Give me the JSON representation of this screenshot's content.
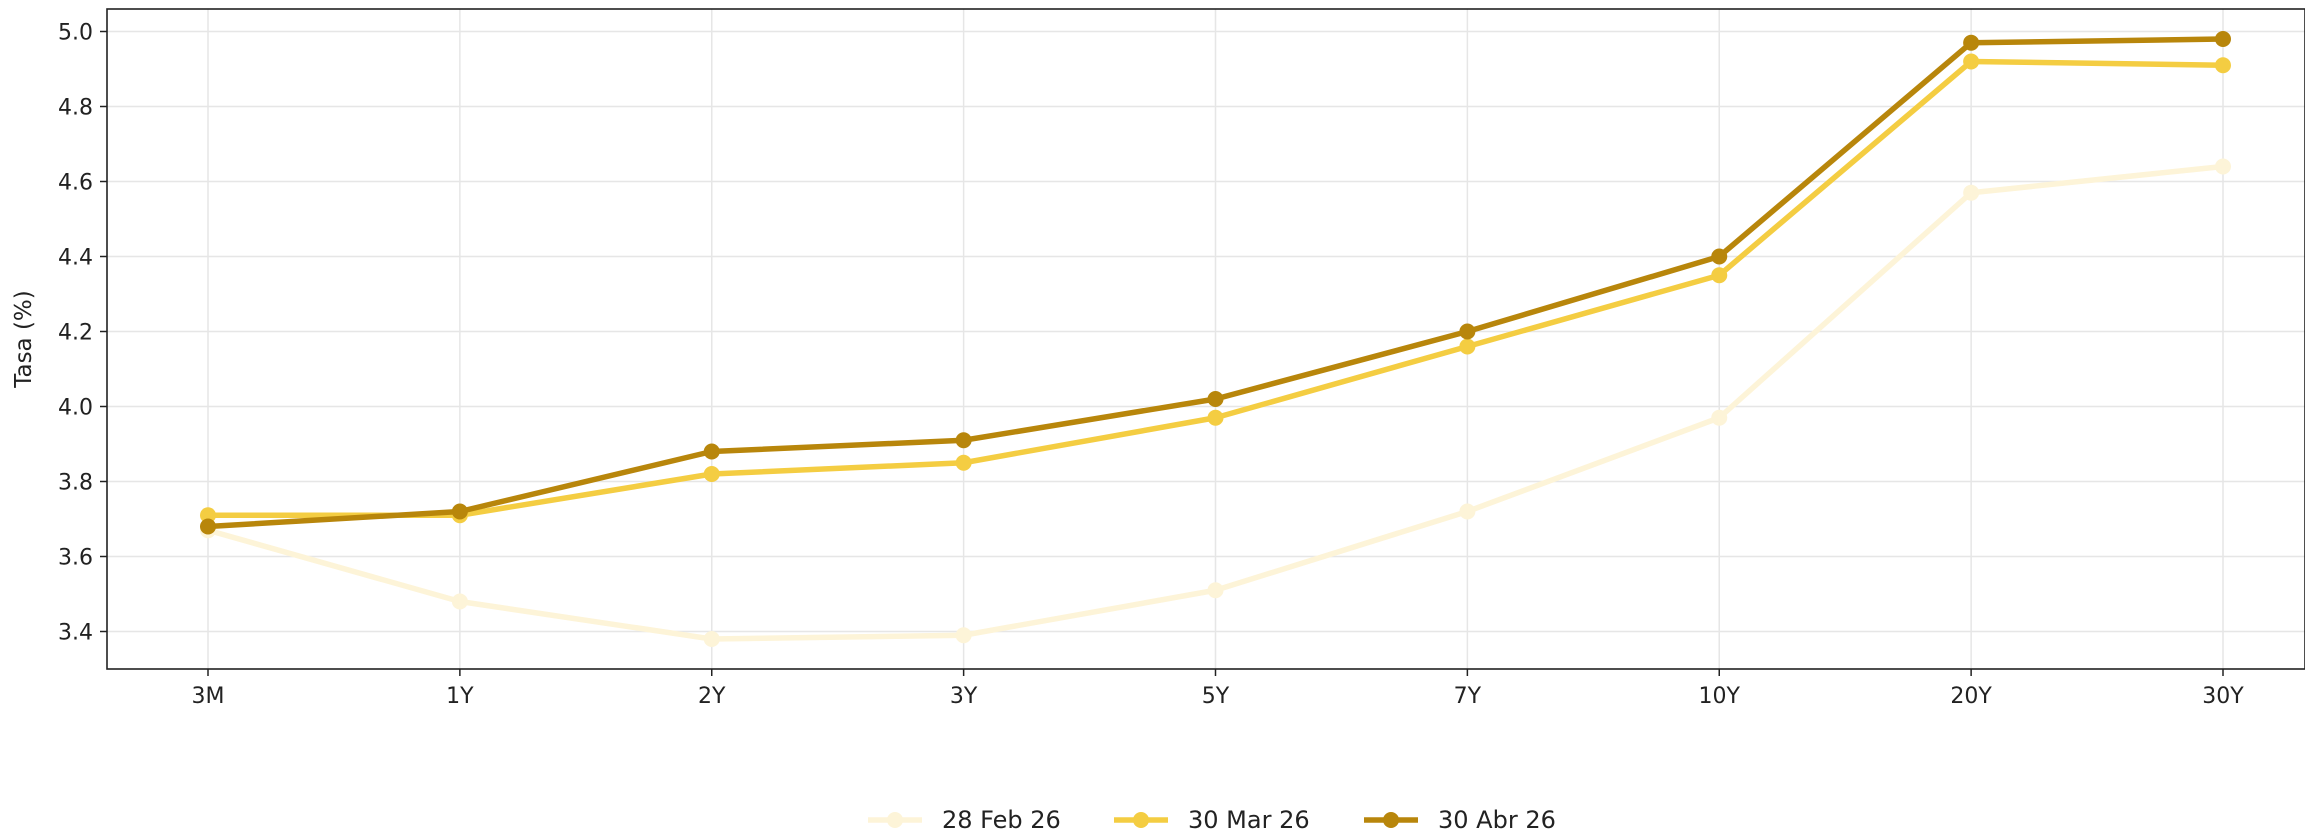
{
  "chart_data": {
    "type": "line",
    "title": "",
    "xlabel": "",
    "ylabel": "Tasa (%)",
    "categories": [
      "3M",
      "1Y",
      "2Y",
      "3Y",
      "5Y",
      "7Y",
      "10Y",
      "20Y",
      "30Y"
    ],
    "ylim": [
      3.3,
      5.06
    ],
    "yticks": [
      "3.4",
      "3.6",
      "3.8",
      "4.0",
      "4.2",
      "4.4",
      "4.6",
      "4.8",
      "5.0"
    ],
    "grid": true,
    "legend_position": "bottom-center",
    "series": [
      {
        "name": "28 Feb 26",
        "color": "#fdf4d8",
        "values": [
          3.67,
          3.48,
          3.38,
          3.39,
          3.51,
          3.72,
          3.97,
          4.57,
          4.64
        ]
      },
      {
        "name": "30 Mar 26",
        "color": "#f4cd42",
        "values": [
          3.71,
          3.71,
          3.82,
          3.85,
          3.97,
          4.16,
          4.35,
          4.92,
          4.91
        ]
      },
      {
        "name": "30 Abr 26",
        "color": "#b8860b",
        "values": [
          3.68,
          3.72,
          3.88,
          3.91,
          4.02,
          4.2,
          4.4,
          4.97,
          4.98
        ]
      }
    ]
  }
}
